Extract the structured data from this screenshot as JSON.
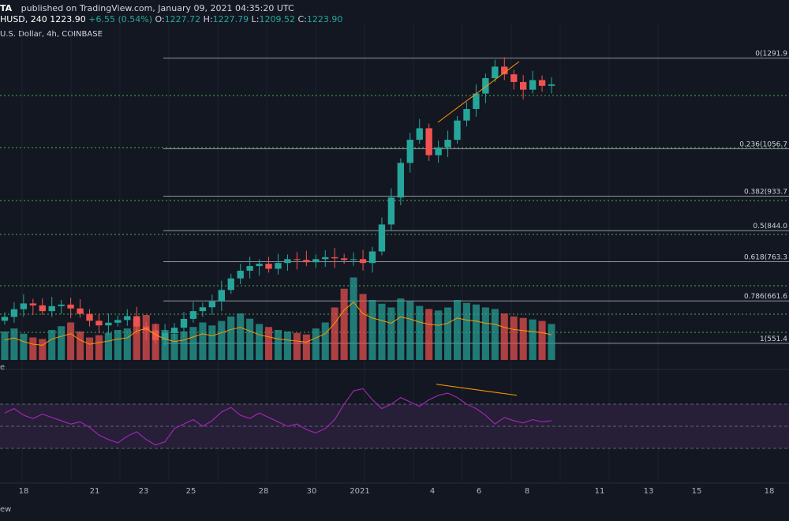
{
  "header": {
    "brand": "TA",
    "published": "published on TradingView.com, January 09, 2021 04:35:20 UTC",
    "symbol": "HUSD, 240",
    "price": "1223.90",
    "change": "+6.55 (0.54%)",
    "ohlc": {
      "o_label": "O:",
      "o": "1227.72",
      "h_label": "H:",
      "h": "1227.79",
      "l_label": "L:",
      "l": "1209.52",
      "c_label": "C:",
      "c": "1223.90"
    },
    "subtitle": "U.S. Dollar, 4h, COINBASE"
  },
  "indicator_label": "e",
  "footer": "ew",
  "colors": {
    "background": "#131722",
    "bull": "#26a69a",
    "bear": "#ef5350",
    "green_level": "#4caf50",
    "fib_line": "#c8cbd2",
    "volume_ma": "#ff9800",
    "rsi_line": "#9c27b0",
    "rsi_band": "#2a1f3a",
    "trend": "#ff9800"
  },
  "chart_data": [
    {
      "type": "candlestick",
      "title": "",
      "x_ticks": [
        "18",
        "21",
        "23",
        "25",
        "28",
        "30",
        "2021",
        "4",
        "6",
        "8",
        "11",
        "13",
        "15",
        "18"
      ],
      "fib_levels": [
        {
          "ratio": "0",
          "price": "1291.9",
          "label": "0(1291.9"
        },
        {
          "ratio": "0.236",
          "price": "1056.7",
          "label": "0.236(1056.7"
        },
        {
          "ratio": "0.382",
          "price": "933.7",
          "label": "0.382(933.7"
        },
        {
          "ratio": "0.5",
          "price": "844.0",
          "label": "0.5(844.0"
        },
        {
          "ratio": "0.618",
          "price": "763.3",
          "label": "0.618(763.3"
        },
        {
          "ratio": "0.786",
          "price": "661.6",
          "label": "0.786(661.6"
        },
        {
          "ratio": "1",
          "price": "551.4",
          "label": "1(551.4"
        }
      ],
      "candles_close_trend": [
        620,
        640,
        655,
        650,
        635,
        648,
        652,
        642,
        628,
        610,
        598,
        605,
        612,
        622,
        595,
        585,
        560,
        578,
        592,
        615,
        635,
        645,
        660,
        690,
        720,
        740,
        752,
        758,
        745,
        760,
        770,
        768,
        762,
        770,
        775,
        772,
        768,
        770,
        760,
        790,
        860,
        930,
        1020,
        1080,
        1110,
        1040,
        1060,
        1080,
        1130,
        1160,
        1200,
        1240,
        1270,
        1250,
        1230,
        1210,
        1235,
        1220,
        1224
      ],
      "volume_trend": [
        38,
        42,
        35,
        30,
        28,
        40,
        45,
        50,
        38,
        30,
        33,
        36,
        40,
        42,
        55,
        60,
        48,
        40,
        35,
        38,
        44,
        50,
        46,
        52,
        58,
        62,
        55,
        48,
        44,
        40,
        38,
        36,
        34,
        42,
        50,
        70,
        95,
        110,
        88,
        80,
        75,
        70,
        82,
        78,
        72,
        68,
        66,
        70,
        80,
        76,
        74,
        70,
        68,
        62,
        58,
        56,
        54,
        52,
        48
      ]
    },
    {
      "type": "line",
      "title": "",
      "name": "",
      "values": [
        62,
        66,
        60,
        57,
        61,
        58,
        55,
        52,
        54,
        49,
        42,
        38,
        35,
        41,
        45,
        38,
        33,
        36,
        48,
        52,
        56,
        50,
        55,
        63,
        67,
        60,
        57,
        62,
        58,
        54,
        50,
        52,
        47,
        44,
        48,
        56,
        70,
        82,
        84,
        74,
        66,
        70,
        76,
        72,
        68,
        74,
        78,
        80,
        76,
        70,
        66,
        60,
        52,
        58,
        55,
        53,
        56,
        54,
        55
      ],
      "band": [
        30,
        70
      ]
    }
  ]
}
